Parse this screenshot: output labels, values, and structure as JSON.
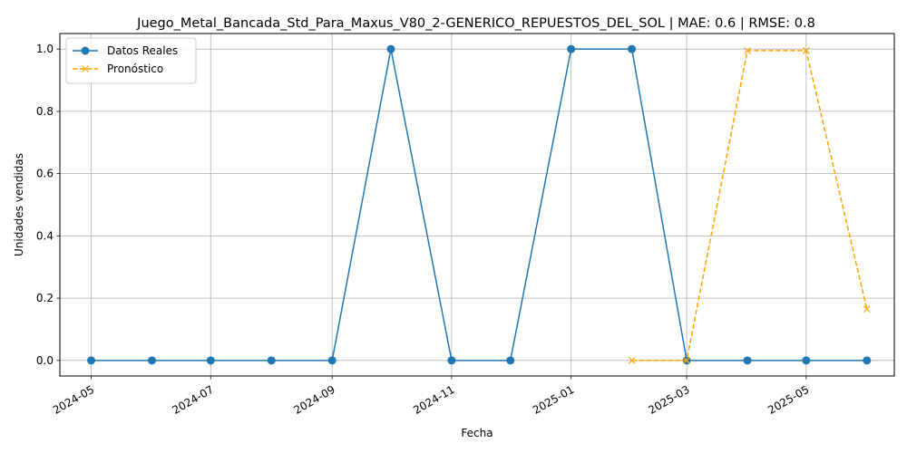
{
  "chart_data": {
    "type": "line",
    "title": "Juego_Metal_Bancada_Std_Para_Maxus_V80_2-GENERICO_REPUESTOS_DEL_SOL | MAE: 0.6 | RMSE: 0.8",
    "xlabel": "Fecha",
    "ylabel": "Unidades vendidas",
    "xlim": [
      "2024-04-15",
      "2025-06-15"
    ],
    "ylim": [
      -0.05,
      1.05
    ],
    "grid": true,
    "legend_position": "top-left",
    "x_ticks": [
      "2024-05",
      "2024-07",
      "2024-09",
      "2024-11",
      "2025-01",
      "2025-03",
      "2025-05"
    ],
    "y_ticks": [
      "0.0",
      "0.2",
      "0.4",
      "0.6",
      "0.8",
      "1.0"
    ],
    "series": [
      {
        "name": "Datos Reales",
        "color": "#1f77b4",
        "style": "solid",
        "marker": "circle",
        "x": [
          "2024-05-01",
          "2024-06-01",
          "2024-07-01",
          "2024-08-01",
          "2024-09-01",
          "2024-10-01",
          "2024-11-01",
          "2024-12-01",
          "2025-01-01",
          "2025-02-01",
          "2025-03-01",
          "2025-04-01",
          "2025-05-01",
          "2025-06-01"
        ],
        "values": [
          0,
          0,
          0,
          0,
          0,
          1,
          0,
          0,
          1,
          1,
          0,
          0,
          0,
          0
        ]
      },
      {
        "name": "Pronóstico",
        "color": "#ffa500",
        "style": "dashed",
        "marker": "x",
        "x": [
          "2025-02-01",
          "2025-03-01",
          "2025-04-01",
          "2025-05-01",
          "2025-06-01"
        ],
        "values": [
          0.0,
          0.0,
          0.995,
          0.995,
          0.165
        ]
      }
    ]
  }
}
